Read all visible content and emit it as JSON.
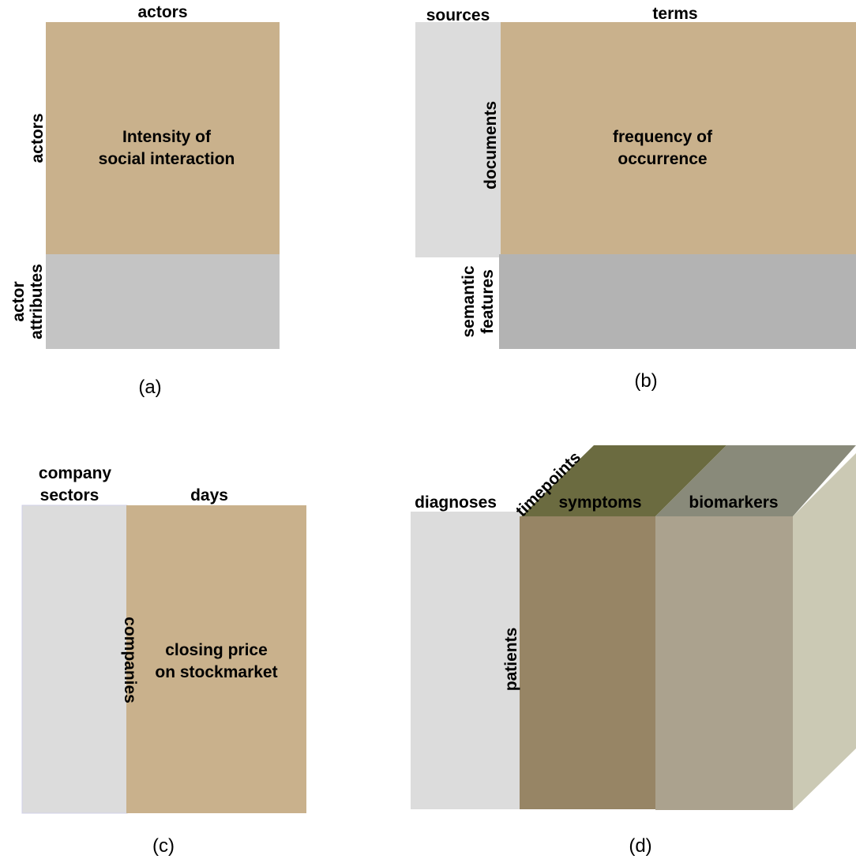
{
  "colors": {
    "tan": "#C9B18C",
    "light_gray": "#DCDCDC",
    "gray": "#C4C4C4",
    "gray_b": "#B3B3B3",
    "olive_dark": "#6B6B40",
    "olive_gray": "#898A7A",
    "brown": "#978565",
    "taupe": "#ABA28E",
    "side_face": "#CBC9B4"
  },
  "panel_a": {
    "caption": "(a)",
    "top_label": "actors",
    "left_top_label": "actors",
    "left_bottom_label_line1": "actor",
    "left_bottom_label_line2": "attributes",
    "center_line1": "Intensity of",
    "center_line2": "social interaction"
  },
  "panel_b": {
    "caption": "(b)",
    "top_left_label": "sources",
    "top_label": "terms",
    "left_label": "documents",
    "bottom_left_label_line1": "semantic",
    "bottom_left_label_line2": "features",
    "center_line1": "frequency of",
    "center_line2": "occurrence"
  },
  "panel_c": {
    "caption": "(c)",
    "top_left_label_line1": "company",
    "top_left_label_line2": "sectors",
    "top_label": "days",
    "left_label": "companies",
    "center_line1": "closing price",
    "center_line2": "on stockmarket"
  },
  "panel_d": {
    "caption": "(d)",
    "diagnoses_label": "diagnoses",
    "timepoints_label": "timepoints",
    "symptoms_label": "symptoms",
    "biomarkers_label": "biomarkers",
    "patients_label": "patients"
  }
}
